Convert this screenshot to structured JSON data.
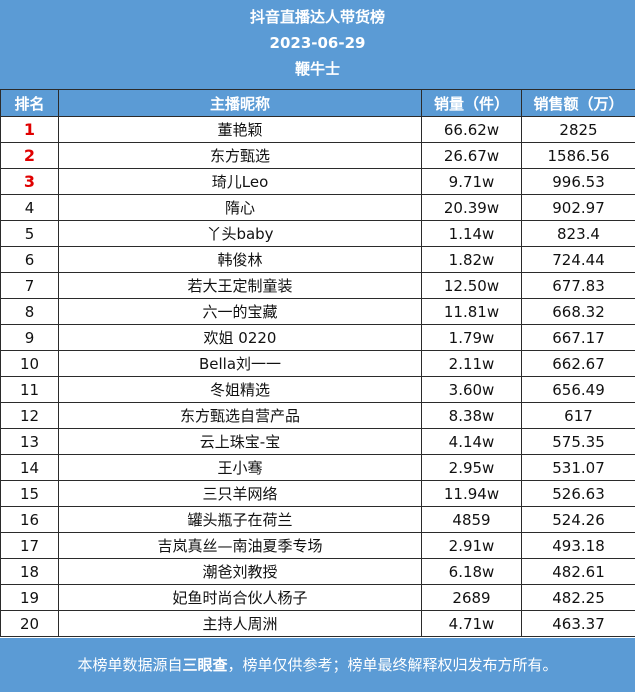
{
  "header": {
    "title": "抖音直播达人带货榜",
    "date": "2023-06-29",
    "brand": "鞭牛士"
  },
  "table": {
    "columns": [
      "排名",
      "主播昵称",
      "销量（件）",
      "销售额（万）"
    ],
    "rows": [
      {
        "rank": "1",
        "name": "董艳颖",
        "volume": "66.62w",
        "sales": "2825"
      },
      {
        "rank": "2",
        "name": "东方甄选",
        "volume": "26.67w",
        "sales": "1586.56"
      },
      {
        "rank": "3",
        "name": "琦儿Leo",
        "volume": "9.71w",
        "sales": "996.53"
      },
      {
        "rank": "4",
        "name": "隋心",
        "volume": "20.39w",
        "sales": "902.97"
      },
      {
        "rank": "5",
        "name": "丫头baby",
        "volume": "1.14w",
        "sales": "823.4"
      },
      {
        "rank": "6",
        "name": "韩俊林",
        "volume": "1.82w",
        "sales": "724.44"
      },
      {
        "rank": "7",
        "name": "若大王定制童装",
        "volume": "12.50w",
        "sales": "677.83"
      },
      {
        "rank": "8",
        "name": "六一的宝藏",
        "volume": "11.81w",
        "sales": "668.32"
      },
      {
        "rank": "9",
        "name": "欢姐 0220",
        "volume": "1.79w",
        "sales": "667.17"
      },
      {
        "rank": "10",
        "name": "Bella刘一一",
        "volume": "2.11w",
        "sales": "662.67"
      },
      {
        "rank": "11",
        "name": "冬姐精选",
        "volume": "3.60w",
        "sales": "656.49"
      },
      {
        "rank": "12",
        "name": "东方甄选自营产品",
        "volume": "8.38w",
        "sales": "617"
      },
      {
        "rank": "13",
        "name": "云上珠宝-宝",
        "volume": "4.14w",
        "sales": "575.35"
      },
      {
        "rank": "14",
        "name": "王小骞",
        "volume": "2.95w",
        "sales": "531.07"
      },
      {
        "rank": "15",
        "name": "三只羊网络",
        "volume": "11.94w",
        "sales": "526.63"
      },
      {
        "rank": "16",
        "name": "罐头瓶子在荷兰",
        "volume": "4859",
        "sales": "524.26"
      },
      {
        "rank": "17",
        "name": "吉岚真丝—南油夏季专场",
        "volume": "2.91w",
        "sales": "493.18"
      },
      {
        "rank": "18",
        "name": "潮爸刘教授",
        "volume": "6.18w",
        "sales": "482.61"
      },
      {
        "rank": "19",
        "name": "妃鱼时尚合伙人杨子",
        "volume": "2689",
        "sales": "482.25"
      },
      {
        "rank": "20",
        "name": "主持人周洲",
        "volume": "4.71w",
        "sales": "463.37"
      }
    ]
  },
  "footer": {
    "prefix": "本榜单数据源自",
    "source": "三眼查",
    "suffix": "，榜单仅供参考；榜单最终解释权归发布方所有。"
  }
}
